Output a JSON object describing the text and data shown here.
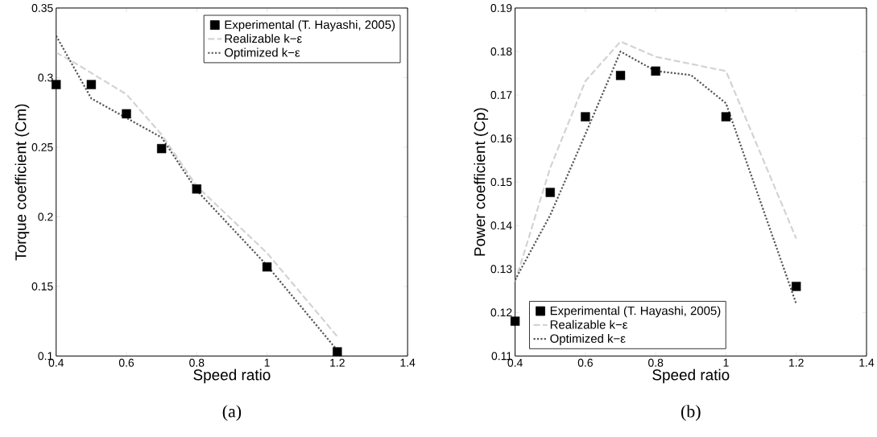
{
  "chart_data": [
    {
      "type": "line",
      "xlabel": "Speed ratio",
      "ylabel": "Torque coefficient (Cm)",
      "xlim": [
        0.4,
        1.4
      ],
      "ylim": [
        0.1,
        0.35
      ],
      "xticks": [
        0.4,
        0.6,
        0.8,
        1,
        1.2,
        1.4
      ],
      "yticks": [
        0.1,
        0.15,
        0.2,
        0.25,
        0.3,
        0.35
      ],
      "legend": "top right",
      "annotations": [
        "(a)"
      ],
      "series": [
        {
          "name": "Experimental (T. Hayashi, 2005)",
          "type": "scatter",
          "marker": "square",
          "color": "#000000",
          "x": [
            0.4,
            0.5,
            0.6,
            0.7,
            0.8,
            1.0,
            1.2
          ],
          "values": [
            0.295,
            0.295,
            0.274,
            0.249,
            0.22,
            0.164,
            0.103
          ]
        },
        {
          "name": "Realizable k−ε",
          "type": "line",
          "line_style": "dashed",
          "color": "#d3d3d3",
          "x": [
            0.4,
            0.45,
            0.6,
            0.7,
            0.8,
            1.0,
            1.2
          ],
          "values": [
            0.318,
            0.311,
            0.288,
            0.259,
            0.222,
            0.174,
            0.114
          ]
        },
        {
          "name": "Optimized k−ε",
          "type": "line",
          "line_style": "dotted",
          "color": "#555555",
          "x": [
            0.4,
            0.5,
            0.6,
            0.7,
            0.8,
            1.0,
            1.2
          ],
          "values": [
            0.33,
            0.285,
            0.271,
            0.257,
            0.219,
            0.165,
            0.104
          ]
        }
      ]
    },
    {
      "type": "line",
      "xlabel": "Speed ratio",
      "ylabel": "Power coefficient (Cp)",
      "xlim": [
        0.4,
        1.4
      ],
      "ylim": [
        0.11,
        0.19
      ],
      "xticks": [
        0.4,
        0.6,
        0.8,
        1,
        1.2,
        1.4
      ],
      "yticks": [
        0.11,
        0.12,
        0.13,
        0.14,
        0.15,
        0.16,
        0.17,
        0.18,
        0.19
      ],
      "legend": "bottom left",
      "annotations": [
        "(b)"
      ],
      "series": [
        {
          "name": "Experimental (T. Hayashi, 2005)",
          "type": "scatter",
          "marker": "square",
          "color": "#000000",
          "x": [
            0.4,
            0.5,
            0.6,
            0.7,
            0.8,
            1.0,
            1.2
          ],
          "values": [
            0.118,
            0.1476,
            0.165,
            0.1745,
            0.1755,
            0.165,
            0.126
          ]
        },
        {
          "name": "Realizable k−ε",
          "type": "line",
          "line_style": "dashed",
          "color": "#d3d3d3",
          "x": [
            0.4,
            0.5,
            0.6,
            0.7,
            0.8,
            1.0,
            1.2
          ],
          "values": [
            0.127,
            0.1533,
            0.1732,
            0.1823,
            0.1788,
            0.1755,
            0.137
          ]
        },
        {
          "name": "Optimized k−ε",
          "type": "line",
          "line_style": "dotted",
          "color": "#555555",
          "x": [
            0.4,
            0.5,
            0.6,
            0.7,
            0.8,
            0.9,
            1.0,
            1.2
          ],
          "values": [
            0.1275,
            0.1424,
            0.161,
            0.18,
            0.1755,
            0.1746,
            0.1681,
            0.122
          ]
        }
      ]
    }
  ]
}
